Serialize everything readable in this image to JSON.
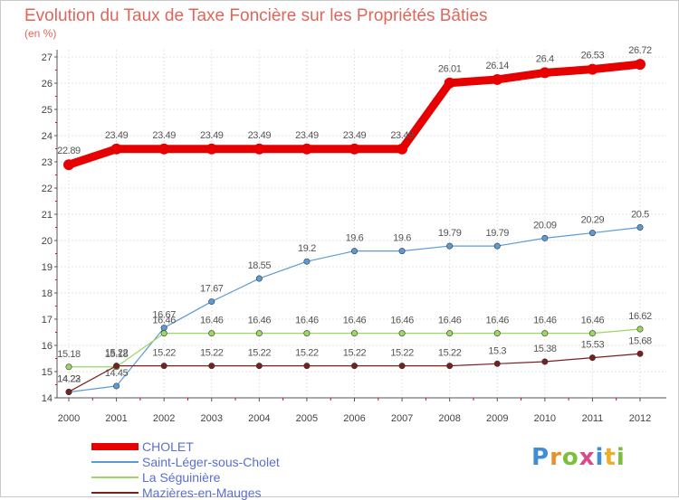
{
  "title": "Evolution du Taux de Taxe Foncière sur les Propriétés Bâties",
  "subtitle": "(en %)",
  "logo": {
    "letters": [
      "P",
      "r",
      "o",
      "x",
      "i",
      "t",
      "i"
    ],
    "colors": [
      "#3e8fd6",
      "#e8912c",
      "#7bbf3d",
      "#d94a8a",
      "#3e8fd6",
      "#e8b02c",
      "#7bbf3d"
    ]
  },
  "chart_data": {
    "type": "line",
    "title": "Evolution du Taux de Taxe Foncière sur les Propriétés Bâties",
    "ylabel": "(en %)",
    "xlabel": "",
    "x": [
      "2000",
      "2001",
      "2002",
      "2003",
      "2004",
      "2005",
      "2006",
      "2007",
      "2008",
      "2009",
      "2010",
      "2011",
      "2012"
    ],
    "ylim": [
      14,
      27
    ],
    "yticks": [
      "14",
      "15",
      "16",
      "17",
      "18",
      "19",
      "20",
      "21",
      "22",
      "23",
      "24",
      "25",
      "26",
      "27"
    ],
    "grid": true,
    "legend_position": "bottom-left",
    "series": [
      {
        "name": "CHOLET",
        "color": "#e60000",
        "values": [
          22.89,
          23.49,
          23.49,
          23.49,
          23.49,
          23.49,
          23.49,
          23.49,
          26.01,
          26.14,
          26.4,
          26.53,
          26.72
        ],
        "labels": [
          "22.89",
          "23.49",
          "23.49",
          "23.49",
          "23.49",
          "23.49",
          "23.49",
          "23.49",
          "26.01",
          "26.14",
          "26.4",
          "26.53",
          "26.72"
        ]
      },
      {
        "name": "Saint-Léger-sous-Cholet",
        "color": "#5b9bd5",
        "values": [
          14.22,
          14.45,
          16.67,
          17.67,
          18.55,
          19.2,
          19.6,
          19.6,
          19.79,
          19.79,
          20.09,
          20.29,
          20.5
        ],
        "labels": [
          "14.22",
          "14.45",
          "16.67",
          "17.67",
          "18.55",
          "19.2",
          "19.6",
          "19.6",
          "19.79",
          "19.79",
          "20.09",
          "20.29",
          "20.5"
        ]
      },
      {
        "name": "La Séguinière",
        "color": "#9ad860",
        "values": [
          15.18,
          15.18,
          16.46,
          16.46,
          16.46,
          16.46,
          16.46,
          16.46,
          16.46,
          16.46,
          16.46,
          16.46,
          16.62
        ],
        "labels": [
          "15.18",
          "15.18",
          "16.46",
          "16.46",
          "16.46",
          "16.46",
          "16.46",
          "16.46",
          "16.46",
          "16.46",
          "16.46",
          "16.46",
          "16.62"
        ]
      },
      {
        "name": "Mazières-en-Mauges",
        "color": "#7a1f1f",
        "values": [
          14.23,
          15.22,
          15.22,
          15.22,
          15.22,
          15.22,
          15.22,
          15.22,
          15.22,
          15.3,
          15.38,
          15.53,
          15.68
        ],
        "labels": [
          "14.23",
          "15.22",
          "15.22",
          "15.22",
          "15.22",
          "15.22",
          "15.22",
          "15.22",
          "15.22",
          "15.3",
          "15.38",
          "15.53",
          "15.68"
        ]
      }
    ]
  }
}
